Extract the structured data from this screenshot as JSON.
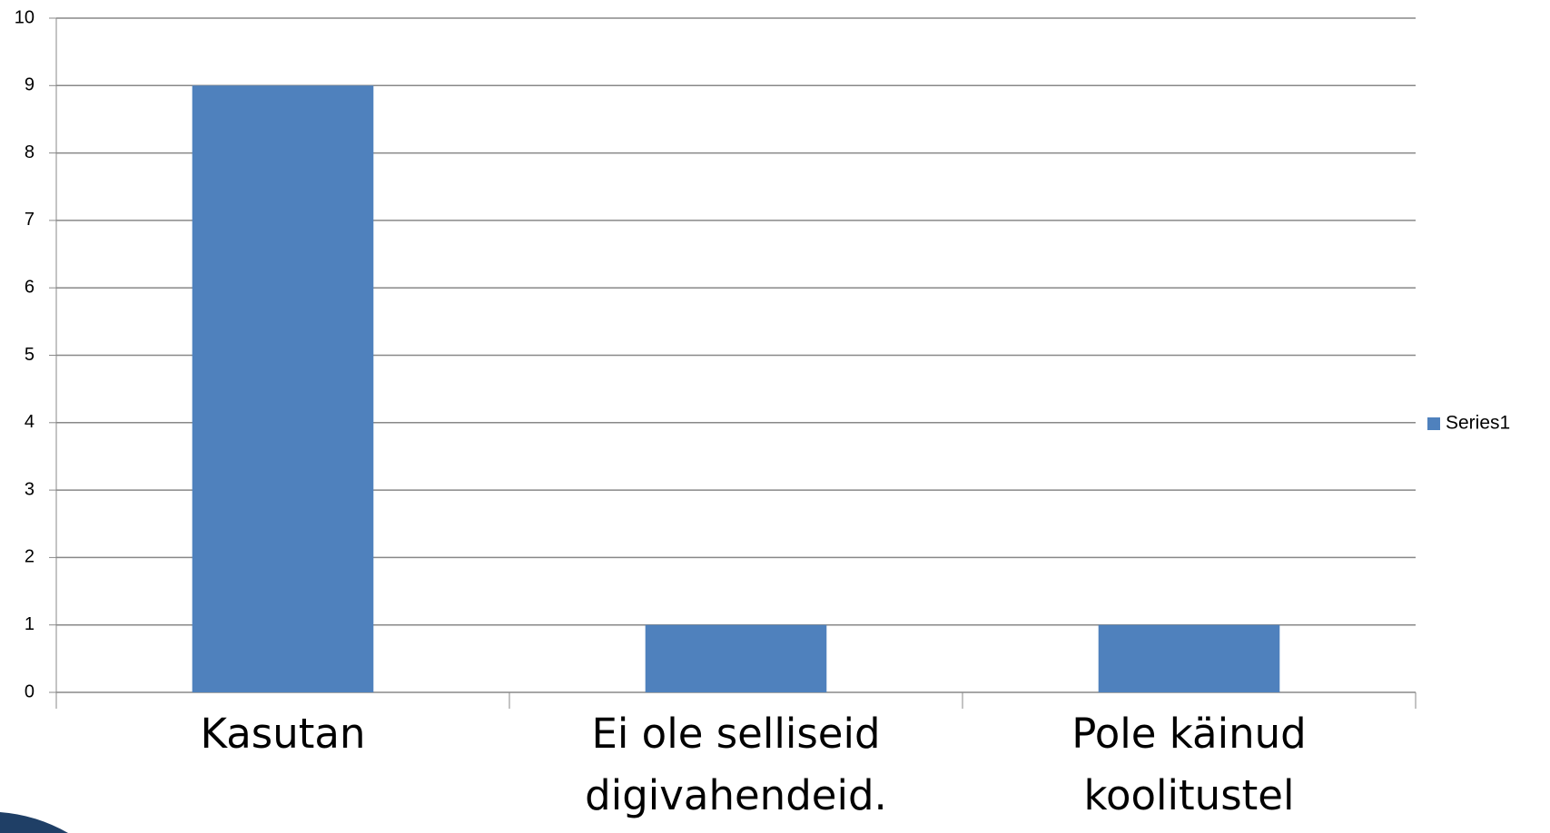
{
  "chart_data": {
    "type": "bar",
    "categories": [
      "Kasutan",
      "Ei ole selliseid digivahendeid.",
      "Pole käinud koolitustel"
    ],
    "series": [
      {
        "name": "Series1",
        "color": "#4f81bd",
        "values": [
          9,
          1,
          1
        ]
      }
    ],
    "ylim": [
      0,
      10
    ],
    "yticks": [
      0,
      1,
      2,
      3,
      4,
      5,
      6,
      7,
      8,
      9,
      10
    ],
    "grid": true,
    "legend": "right"
  }
}
